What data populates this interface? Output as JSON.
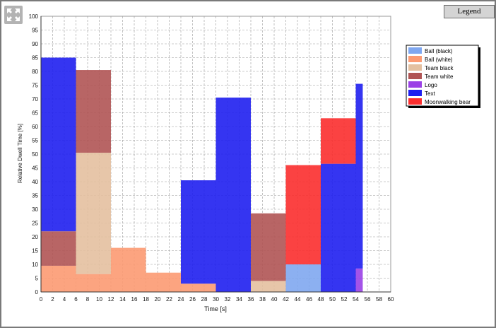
{
  "legend_button": {
    "label": "Legend"
  },
  "icons": {
    "expand": "expand-arrows-icon"
  },
  "chart_data": {
    "type": "bar",
    "subtype": "stacked-variable-width",
    "xlabel": "Time [s]",
    "ylabel": "Relative Dwell Time [%]",
    "xlim": [
      0,
      60
    ],
    "ylim": [
      0,
      100
    ],
    "x_ticks": [
      0,
      2,
      4,
      6,
      8,
      10,
      12,
      14,
      16,
      18,
      20,
      22,
      24,
      26,
      28,
      30,
      32,
      34,
      36,
      38,
      40,
      42,
      44,
      46,
      48,
      50,
      52,
      54,
      56,
      58,
      60
    ],
    "y_ticks": [
      0,
      5,
      10,
      15,
      20,
      25,
      30,
      35,
      40,
      45,
      50,
      55,
      60,
      65,
      70,
      75,
      80,
      85,
      90,
      95,
      100
    ],
    "grid": true,
    "legend_position": "right",
    "series": [
      {
        "name": "Ball (black)",
        "color": "#7fa7f0"
      },
      {
        "name": "Ball (white)",
        "color": "#fc9a72"
      },
      {
        "name": "Team black",
        "color": "#e4c0a0"
      },
      {
        "name": "Team white",
        "color": "#b05454"
      },
      {
        "name": "Logo",
        "color": "#9a40e6"
      },
      {
        "name": "Text",
        "color": "#1f1ff0"
      },
      {
        "name": "Moonwalking bear",
        "color": "#fb2e2e"
      }
    ],
    "bins": [
      {
        "x0": 0,
        "x1": 6,
        "segments": [
          {
            "series": "Ball (white)",
            "value": 9.5
          },
          {
            "series": "Team white",
            "value": 12.5
          },
          {
            "series": "Text",
            "value": 63
          }
        ]
      },
      {
        "x0": 6,
        "x1": 12,
        "segments": [
          {
            "series": "Ball (white)",
            "value": 6.5
          },
          {
            "series": "Team black",
            "value": 44
          },
          {
            "series": "Team white",
            "value": 30
          }
        ]
      },
      {
        "x0": 12,
        "x1": 18,
        "segments": [
          {
            "series": "Ball (white)",
            "value": 16
          }
        ]
      },
      {
        "x0": 18,
        "x1": 24,
        "segments": [
          {
            "series": "Ball (white)",
            "value": 7
          }
        ]
      },
      {
        "x0": 24,
        "x1": 30,
        "segments": [
          {
            "series": "Ball (white)",
            "value": 3
          },
          {
            "series": "Text",
            "value": 37.5
          }
        ]
      },
      {
        "x0": 30,
        "x1": 36,
        "segments": [
          {
            "series": "Text",
            "value": 70.5
          }
        ]
      },
      {
        "x0": 36,
        "x1": 42,
        "segments": [
          {
            "series": "Team black",
            "value": 4
          },
          {
            "series": "Team white",
            "value": 24.5
          }
        ]
      },
      {
        "x0": 42,
        "x1": 48,
        "segments": [
          {
            "series": "Ball (black)",
            "value": 10
          },
          {
            "series": "Moonwalking bear",
            "value": 36
          }
        ]
      },
      {
        "x0": 48,
        "x1": 54,
        "segments": [
          {
            "series": "Text",
            "value": 46.5
          },
          {
            "series": "Moonwalking bear",
            "value": 16.5
          }
        ]
      },
      {
        "x0": 54,
        "x1": 55.2,
        "segments": [
          {
            "series": "Logo",
            "value": 8.5
          },
          {
            "series": "Text",
            "value": 67
          }
        ]
      }
    ]
  }
}
